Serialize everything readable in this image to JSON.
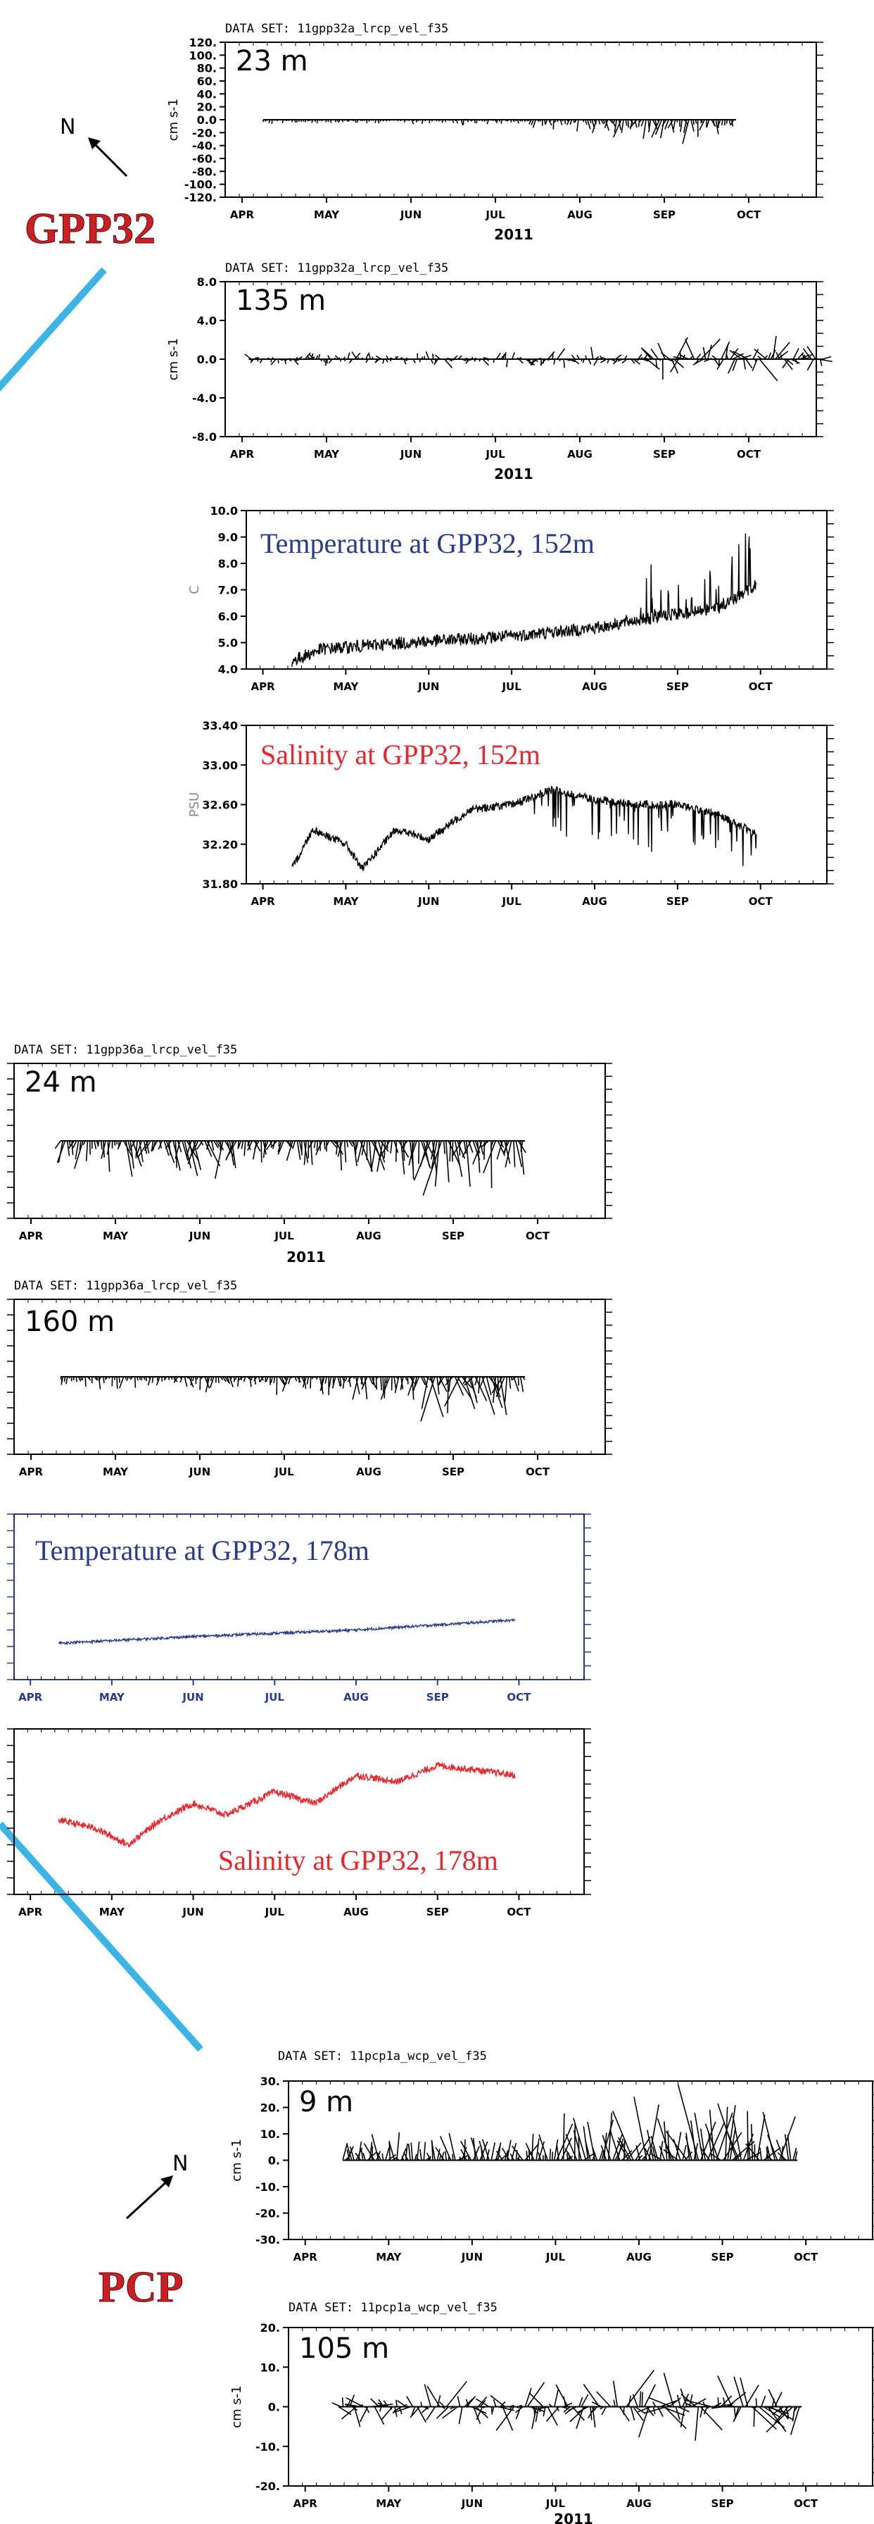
{
  "accent": {
    "blue_line": "#3cb4e6",
    "site_label": "#cc1f24",
    "temp_text": "#2a3a8c",
    "sal_text": "#e8262b"
  },
  "labels": {
    "north": "N",
    "site_gpp32": "GPP32",
    "site_pcp": "PCP"
  },
  "icons": [
    "north-arrow-icon",
    "north-arrow-icon"
  ],
  "chart_data": [
    {
      "id": "p1",
      "type": "stick-plot",
      "dataset": "DATA SET: 11gpp32a_lrcp_vel_f35",
      "depth": "23 m",
      "ylabel": "cm s-1",
      "ylim": [
        -120,
        120
      ],
      "yticks": [
        "120.",
        "100.",
        "80.",
        "60.",
        "40.",
        "20.",
        "0.0",
        "-20.",
        "-40.",
        "-60.",
        "-80.",
        "-100.",
        "-120."
      ],
      "months": [
        "APR",
        "MAY",
        "JUN",
        "JUL",
        "AUG",
        "SEP",
        "OCT"
      ],
      "year": "2011",
      "start": 0.25,
      "end": 5.85,
      "amp": [
        [
          0,
          4
        ],
        [
          3,
          6
        ],
        [
          4,
          14
        ],
        [
          5,
          34
        ],
        [
          5.85,
          14
        ]
      ],
      "bias": -0.8
    },
    {
      "id": "p2",
      "type": "stick-plot",
      "dataset": "DATA SET: 11gpp32a_lrcp_vel_f35",
      "depth": "135 m",
      "ylabel": "cm s-1",
      "ylim": [
        -10,
        10
      ],
      "yticks": [
        "8.0",
        "4.0",
        "0.0",
        "-4.0",
        "-8.0"
      ],
      "months": [
        "APR",
        "MAY",
        "JUN",
        "JUL",
        "AUG",
        "SEP",
        "OCT"
      ],
      "year": "2011",
      "start": 0.08,
      "end": 6.9,
      "amp": [
        [
          0,
          2.2
        ],
        [
          2,
          1.8
        ],
        [
          4,
          2.4
        ],
        [
          6,
          5.5
        ],
        [
          6.9,
          4.5
        ]
      ],
      "bias": 0
    },
    {
      "id": "p3",
      "type": "line",
      "title": "Temperature at GPP32,  152m",
      "ylabel": "C",
      "ylim": [
        4.0,
        10.0
      ],
      "yticks": [
        "10.0",
        "9.0",
        "8.0",
        "7.0",
        "6.0",
        "5.0",
        "4.0"
      ],
      "months": [
        "APR",
        "MAY",
        "JUN",
        "JUL",
        "AUG",
        "SEP",
        "OCT"
      ],
      "start": 0.35,
      "end": 5.95,
      "baseline": [
        [
          0.35,
          4.3
        ],
        [
          0.7,
          4.75
        ],
        [
          1.5,
          4.95
        ],
        [
          3,
          5.25
        ],
        [
          4,
          5.55
        ],
        [
          4.5,
          5.85
        ],
        [
          5.5,
          6.3
        ],
        [
          5.95,
          7.2
        ]
      ],
      "noise": 0.08,
      "spikeFrom": 4.55,
      "spike": 2.0
    },
    {
      "id": "p4",
      "type": "line",
      "title": "Salinity at GPP32, 152m",
      "ylabel": "PSU",
      "ylim": [
        31.8,
        33.4
      ],
      "yticks": [
        "33.40",
        "33.00",
        "32.60",
        "32.20",
        "31.80"
      ],
      "months": [
        "APR",
        "MAY",
        "JUN",
        "JUL",
        "AUG",
        "SEP",
        "OCT"
      ],
      "start": 0.35,
      "end": 5.95,
      "baseline": [
        [
          0.35,
          31.95
        ],
        [
          0.6,
          32.35
        ],
        [
          1.0,
          32.2
        ],
        [
          1.2,
          31.95
        ],
        [
          1.6,
          32.35
        ],
        [
          2.0,
          32.25
        ],
        [
          2.5,
          32.55
        ],
        [
          3.0,
          32.6
        ],
        [
          3.5,
          32.75
        ],
        [
          4.0,
          32.65
        ],
        [
          4.5,
          32.6
        ],
        [
          5.0,
          32.6
        ],
        [
          5.5,
          32.5
        ],
        [
          5.95,
          32.3
        ]
      ],
      "noise": 0.05,
      "dipFrom": 3.2,
      "dip": 0.45
    },
    {
      "id": "p5",
      "type": "stick-plot",
      "dataset": "DATA SET: 11gpp36a_lrcp_vel_f35",
      "depth": "24 m",
      "months": [
        "APR",
        "MAY",
        "JUN",
        "JUL",
        "AUG",
        "SEP",
        "OCT"
      ],
      "year": "2011",
      "start": 0.35,
      "end": 5.85,
      "amp": [
        [
          0,
          12
        ],
        [
          2,
          22
        ],
        [
          3,
          12
        ],
        [
          5,
          28
        ],
        [
          5.85,
          20
        ]
      ],
      "bias": -0.9
    },
    {
      "id": "p6",
      "type": "stick-plot",
      "dataset": "DATA SET: 11gpp36a_lrcp_vel_f35",
      "depth": "160 m",
      "months": [
        "APR",
        "MAY",
        "JUN",
        "JUL",
        "AUG",
        "SEP",
        "OCT"
      ],
      "start": 0.35,
      "end": 5.85,
      "amp": [
        [
          0,
          5
        ],
        [
          3,
          9
        ],
        [
          4,
          12
        ],
        [
          5,
          28
        ],
        [
          5.85,
          20
        ]
      ],
      "bias": -0.85
    },
    {
      "id": "p7",
      "type": "line",
      "title": "Temperature at GPP32,  178m",
      "months": [
        "APR",
        "MAY",
        "JUN",
        "JUL",
        "AUG",
        "SEP",
        "OCT"
      ],
      "start": 0.35,
      "end": 5.95,
      "baseline": [
        [
          0.35,
          0.22
        ],
        [
          2,
          0.26
        ],
        [
          4,
          0.3
        ],
        [
          5.95,
          0.36
        ]
      ],
      "noise": 0.015
    },
    {
      "id": "p8",
      "type": "line",
      "title": "Salinity at GPP32, 178m",
      "months": [
        "APR",
        "MAY",
        "JUN",
        "JUL",
        "AUG",
        "SEP",
        "OCT"
      ],
      "start": 0.35,
      "end": 5.95,
      "baseline": [
        [
          0.35,
          0.45
        ],
        [
          0.8,
          0.4
        ],
        [
          1.2,
          0.3
        ],
        [
          1.6,
          0.45
        ],
        [
          2.0,
          0.55
        ],
        [
          2.4,
          0.48
        ],
        [
          3.0,
          0.62
        ],
        [
          3.5,
          0.55
        ],
        [
          4.0,
          0.72
        ],
        [
          4.5,
          0.68
        ],
        [
          5.0,
          0.78
        ],
        [
          5.5,
          0.75
        ],
        [
          5.95,
          0.72
        ]
      ],
      "noise": 0.04
    },
    {
      "id": "p9",
      "type": "stick-plot",
      "dataset": "DATA SET: 11pcp1a_wcp_vel_f35",
      "depth": "9 m",
      "ylabel": "cm s-1",
      "ylim": [
        -30,
        30
      ],
      "yticks": [
        "30.",
        "20.",
        "10.",
        "0.",
        "-10.",
        "-20.",
        "-30."
      ],
      "months": [
        "APR",
        "MAY",
        "JUN",
        "JUL",
        "AUG",
        "SEP",
        "OCT"
      ],
      "start": 0.45,
      "end": 5.9,
      "amp": [
        [
          0,
          8
        ],
        [
          2,
          10
        ],
        [
          4,
          16
        ],
        [
          5,
          22
        ],
        [
          5.9,
          14
        ]
      ],
      "bias": 0.75
    },
    {
      "id": "p10",
      "type": "stick-plot",
      "dataset": "DATA SET: 11pcp1a_wcp_vel_f35",
      "depth": "105 m",
      "ylabel": "cm s-1",
      "ylim": [
        -20,
        20
      ],
      "yticks": [
        "20.",
        "10.",
        "0.",
        "-10.",
        "-20."
      ],
      "months": [
        "APR",
        "MAY",
        "JUN",
        "JUL",
        "AUG",
        "SEP",
        "OCT"
      ],
      "year": "2011",
      "start": 0.4,
      "end": 5.95,
      "amp": [
        [
          0,
          8
        ],
        [
          2,
          10
        ],
        [
          4,
          14
        ],
        [
          5,
          16
        ],
        [
          5.95,
          12
        ]
      ],
      "bias": 0
    }
  ]
}
